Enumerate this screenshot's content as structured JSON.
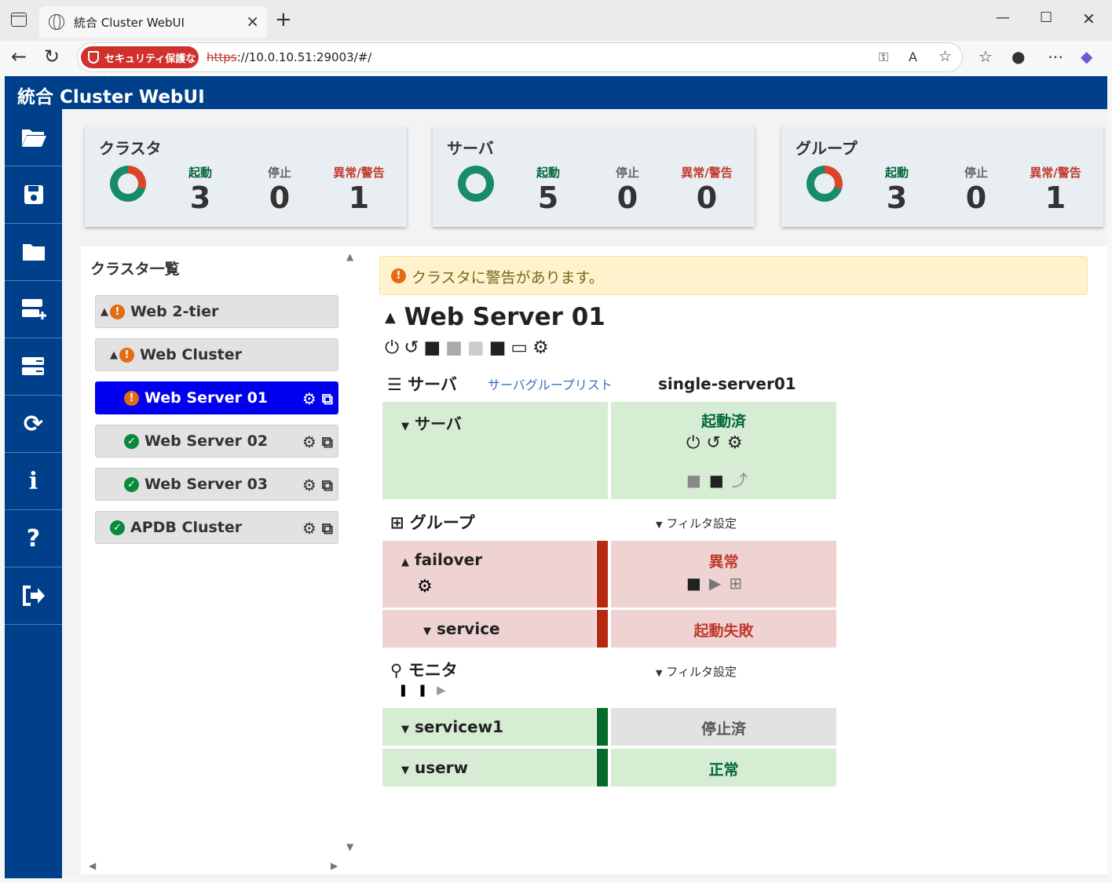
{
  "browser": {
    "tab_title": "統合 Cluster WebUI",
    "security_label": "セキュリティ保護なし",
    "url_scheme": "https",
    "url_rest": "://10.0.10.51:29003/#/"
  },
  "app": {
    "title": "統合 Cluster WebUI"
  },
  "summary": {
    "labels": {
      "running": "起動",
      "stopped": "停止",
      "error": "異常/警告"
    },
    "cards": [
      {
        "title": "クラスタ",
        "running": "3",
        "stopped": "0",
        "error": "1"
      },
      {
        "title": "サーバ",
        "running": "5",
        "stopped": "0",
        "error": "0"
      },
      {
        "title": "グループ",
        "running": "3",
        "stopped": "0",
        "error": "1"
      }
    ]
  },
  "cluster_list": {
    "title": "クラスタ一覧",
    "items": [
      {
        "label": "Web 2-tier",
        "status": "warning"
      },
      {
        "label": "Web Cluster",
        "status": "warning"
      },
      {
        "label": "Web Server 01",
        "status": "warning",
        "selected": true
      },
      {
        "label": "Web Server 02",
        "status": "ok"
      },
      {
        "label": "Web Server 03",
        "status": "ok"
      },
      {
        "label": "APDB Cluster",
        "status": "ok"
      }
    ]
  },
  "detail": {
    "alert": "クラスタに警告があります。",
    "server_title": "Web Server 01",
    "servers_section": "サーバ",
    "server_group_link": "サーバグループリスト",
    "server_column": "single-server01",
    "server_row_name": "サーバ",
    "server_row_status": "起動済",
    "groups_section": "グループ",
    "filter_label": "フィルタ設定",
    "group_name": "failover",
    "group_status": "異常",
    "resource_name": "service",
    "resource_status": "起動失敗",
    "monitors_section": "モニタ",
    "monitors": [
      {
        "name": "servicew1",
        "status": "停止済"
      },
      {
        "name": "userw",
        "status": "正常"
      }
    ]
  },
  "colors": {
    "header": "#003f8a",
    "selected": "#0000ee",
    "running": "#00663a",
    "error": "#c0392b",
    "warning": "#e36b12"
  }
}
